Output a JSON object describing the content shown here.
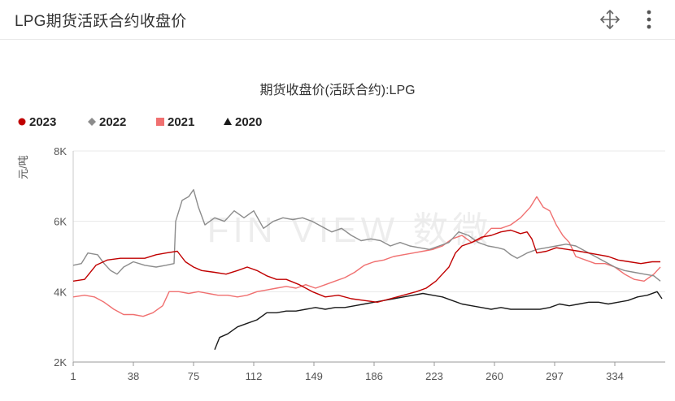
{
  "header": {
    "title": "LPG期货活跃合约收盘价",
    "move_icon": "move-icon",
    "more_icon": "more-vertical-icon"
  },
  "watermark": "FIN VIEW 数微",
  "chart_data": {
    "type": "line",
    "title": "期货收盘价(活跃合约):LPG",
    "xlabel": "",
    "ylabel": "元/吨",
    "xlim": [
      1,
      365
    ],
    "ylim": [
      2000,
      8000
    ],
    "x_ticks": [
      "1",
      "38",
      "75",
      "112",
      "149",
      "186",
      "223",
      "260",
      "297",
      "334"
    ],
    "y_ticks": [
      "2K",
      "4K",
      "6K",
      "8K"
    ],
    "grid": "horizontal",
    "legend_position": "top-left",
    "series": [
      {
        "name": "2023",
        "color": "#c00000",
        "marker": "circle",
        "points": [
          [
            1,
            4300
          ],
          [
            8,
            4350
          ],
          [
            15,
            4750
          ],
          [
            22,
            4900
          ],
          [
            30,
            4950
          ],
          [
            38,
            4950
          ],
          [
            45,
            4950
          ],
          [
            52,
            5050
          ],
          [
            58,
            5100
          ],
          [
            65,
            5150
          ],
          [
            70,
            4850
          ],
          [
            75,
            4700
          ],
          [
            80,
            4600
          ],
          [
            88,
            4550
          ],
          [
            95,
            4500
          ],
          [
            102,
            4600
          ],
          [
            108,
            4700
          ],
          [
            114,
            4600
          ],
          [
            120,
            4450
          ],
          [
            126,
            4350
          ],
          [
            132,
            4350
          ],
          [
            140,
            4200
          ],
          [
            148,
            4000
          ],
          [
            156,
            3850
          ],
          [
            164,
            3900
          ],
          [
            172,
            3800
          ],
          [
            180,
            3750
          ],
          [
            188,
            3700
          ],
          [
            196,
            3800
          ],
          [
            204,
            3900
          ],
          [
            212,
            4000
          ],
          [
            218,
            4100
          ],
          [
            224,
            4300
          ],
          [
            228,
            4500
          ],
          [
            232,
            4700
          ],
          [
            236,
            5100
          ],
          [
            240,
            5300
          ],
          [
            246,
            5400
          ],
          [
            252,
            5550
          ],
          [
            258,
            5600
          ],
          [
            264,
            5700
          ],
          [
            270,
            5750
          ],
          [
            276,
            5650
          ],
          [
            280,
            5700
          ],
          [
            283,
            5500
          ],
          [
            286,
            5100
          ],
          [
            292,
            5150
          ],
          [
            298,
            5250
          ],
          [
            305,
            5200
          ],
          [
            312,
            5150
          ],
          [
            318,
            5100
          ],
          [
            324,
            5050
          ],
          [
            330,
            5000
          ],
          [
            336,
            4900
          ],
          [
            343,
            4850
          ],
          [
            350,
            4800
          ],
          [
            357,
            4850
          ],
          [
            362,
            4850
          ]
        ]
      },
      {
        "name": "2022",
        "color": "#8c8c8c",
        "marker": "diamond",
        "points": [
          [
            1,
            4750
          ],
          [
            6,
            4800
          ],
          [
            10,
            5100
          ],
          [
            16,
            5050
          ],
          [
            20,
            4800
          ],
          [
            24,
            4600
          ],
          [
            28,
            4500
          ],
          [
            32,
            4700
          ],
          [
            38,
            4850
          ],
          [
            45,
            4750
          ],
          [
            52,
            4700
          ],
          [
            58,
            4750
          ],
          [
            63,
            4800
          ],
          [
            64,
            6000
          ],
          [
            68,
            6600
          ],
          [
            72,
            6700
          ],
          [
            75,
            6900
          ],
          [
            78,
            6400
          ],
          [
            82,
            5900
          ],
          [
            88,
            6100
          ],
          [
            94,
            6000
          ],
          [
            100,
            6300
          ],
          [
            106,
            6100
          ],
          [
            112,
            6300
          ],
          [
            118,
            5800
          ],
          [
            124,
            6000
          ],
          [
            130,
            6100
          ],
          [
            136,
            6050
          ],
          [
            142,
            6100
          ],
          [
            148,
            6000
          ],
          [
            154,
            5850
          ],
          [
            160,
            5700
          ],
          [
            166,
            5800
          ],
          [
            172,
            5600
          ],
          [
            178,
            5450
          ],
          [
            184,
            5500
          ],
          [
            190,
            5450
          ],
          [
            196,
            5300
          ],
          [
            202,
            5400
          ],
          [
            208,
            5300
          ],
          [
            214,
            5250
          ],
          [
            220,
            5200
          ],
          [
            226,
            5300
          ],
          [
            232,
            5400
          ],
          [
            238,
            5700
          ],
          [
            244,
            5600
          ],
          [
            250,
            5400
          ],
          [
            256,
            5300
          ],
          [
            262,
            5250
          ],
          [
            266,
            5200
          ],
          [
            270,
            5050
          ],
          [
            274,
            4950
          ],
          [
            280,
            5100
          ],
          [
            286,
            5200
          ],
          [
            292,
            5250
          ],
          [
            298,
            5300
          ],
          [
            304,
            5350
          ],
          [
            310,
            5300
          ],
          [
            316,
            5150
          ],
          [
            322,
            5000
          ],
          [
            328,
            4850
          ],
          [
            334,
            4700
          ],
          [
            340,
            4600
          ],
          [
            346,
            4550
          ],
          [
            352,
            4500
          ],
          [
            358,
            4450
          ],
          [
            362,
            4300
          ]
        ]
      },
      {
        "name": "2021",
        "color": "#f07070",
        "marker": "square",
        "points": [
          [
            1,
            3850
          ],
          [
            8,
            3900
          ],
          [
            14,
            3850
          ],
          [
            20,
            3700
          ],
          [
            26,
            3500
          ],
          [
            32,
            3350
          ],
          [
            38,
            3350
          ],
          [
            44,
            3300
          ],
          [
            50,
            3400
          ],
          [
            56,
            3600
          ],
          [
            60,
            4000
          ],
          [
            66,
            4000
          ],
          [
            72,
            3950
          ],
          [
            78,
            4000
          ],
          [
            84,
            3950
          ],
          [
            90,
            3900
          ],
          [
            96,
            3900
          ],
          [
            102,
            3850
          ],
          [
            108,
            3900
          ],
          [
            114,
            4000
          ],
          [
            120,
            4050
          ],
          [
            126,
            4100
          ],
          [
            132,
            4150
          ],
          [
            138,
            4100
          ],
          [
            144,
            4200
          ],
          [
            150,
            4100
          ],
          [
            156,
            4200
          ],
          [
            162,
            4300
          ],
          [
            168,
            4400
          ],
          [
            174,
            4550
          ],
          [
            180,
            4750
          ],
          [
            186,
            4850
          ],
          [
            192,
            4900
          ],
          [
            198,
            5000
          ],
          [
            204,
            5050
          ],
          [
            210,
            5100
          ],
          [
            216,
            5150
          ],
          [
            222,
            5200
          ],
          [
            228,
            5300
          ],
          [
            234,
            5500
          ],
          [
            240,
            5600
          ],
          [
            246,
            5400
          ],
          [
            252,
            5500
          ],
          [
            258,
            5800
          ],
          [
            264,
            5800
          ],
          [
            270,
            5900
          ],
          [
            276,
            6100
          ],
          [
            282,
            6400
          ],
          [
            286,
            6700
          ],
          [
            290,
            6400
          ],
          [
            294,
            6300
          ],
          [
            298,
            5900
          ],
          [
            302,
            5600
          ],
          [
            306,
            5400
          ],
          [
            310,
            5000
          ],
          [
            316,
            4900
          ],
          [
            322,
            4800
          ],
          [
            328,
            4800
          ],
          [
            334,
            4700
          ],
          [
            340,
            4500
          ],
          [
            346,
            4350
          ],
          [
            352,
            4300
          ],
          [
            358,
            4500
          ],
          [
            362,
            4700
          ]
        ]
      },
      {
        "name": "2020",
        "color": "#1a1a1a",
        "marker": "triangle",
        "points": [
          [
            88,
            2350
          ],
          [
            91,
            2700
          ],
          [
            96,
            2800
          ],
          [
            102,
            3000
          ],
          [
            108,
            3100
          ],
          [
            114,
            3200
          ],
          [
            120,
            3400
          ],
          [
            126,
            3400
          ],
          [
            132,
            3450
          ],
          [
            138,
            3450
          ],
          [
            144,
            3500
          ],
          [
            150,
            3550
          ],
          [
            156,
            3500
          ],
          [
            162,
            3550
          ],
          [
            168,
            3550
          ],
          [
            174,
            3600
          ],
          [
            180,
            3650
          ],
          [
            186,
            3700
          ],
          [
            192,
            3750
          ],
          [
            198,
            3800
          ],
          [
            204,
            3850
          ],
          [
            210,
            3900
          ],
          [
            216,
            3950
          ],
          [
            222,
            3900
          ],
          [
            228,
            3850
          ],
          [
            234,
            3750
          ],
          [
            240,
            3650
          ],
          [
            246,
            3600
          ],
          [
            252,
            3550
          ],
          [
            258,
            3500
          ],
          [
            264,
            3550
          ],
          [
            270,
            3500
          ],
          [
            276,
            3500
          ],
          [
            282,
            3500
          ],
          [
            288,
            3500
          ],
          [
            294,
            3550
          ],
          [
            300,
            3650
          ],
          [
            306,
            3600
          ],
          [
            312,
            3650
          ],
          [
            318,
            3700
          ],
          [
            324,
            3700
          ],
          [
            330,
            3650
          ],
          [
            336,
            3700
          ],
          [
            342,
            3750
          ],
          [
            348,
            3850
          ],
          [
            354,
            3900
          ],
          [
            360,
            4000
          ],
          [
            363,
            3800
          ]
        ]
      }
    ]
  }
}
